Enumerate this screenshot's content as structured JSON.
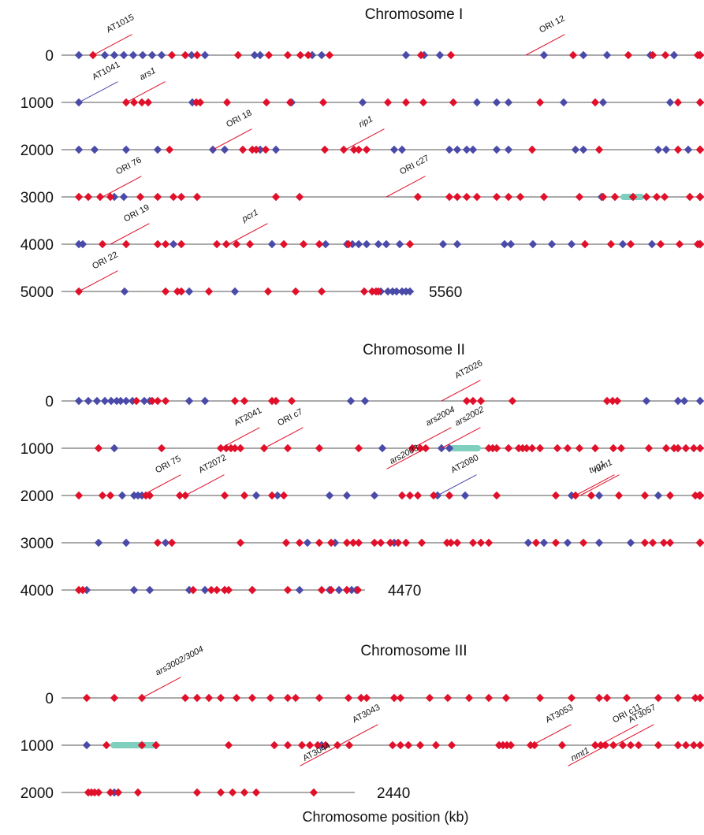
{
  "colors": {
    "red": "#e0102a",
    "blue": "#4a4aa8",
    "teal": "#7fcfbf",
    "line": "#555555"
  },
  "axis_label": "Chromosome position (kb)",
  "chromosomes": [
    {
      "title": "Chromosome I",
      "end_label": "5560",
      "rows": [
        {
          "label": "0",
          "red": [
            18,
            118,
            135,
            150,
            202,
            241,
            265,
            281,
            291,
            318,
            434,
            472,
            627,
            697,
            728,
            744,
            785,
            820,
            828,
            890
          ],
          "blue": [
            0,
            33,
            45,
            57,
            69,
            81,
            93,
            105,
            143,
            160,
            223,
            230,
            296,
            308,
            415,
            438,
            458,
            590,
            640,
            670,
            725,
            755,
            802,
            845,
            893
          ],
          "teal": []
        },
        {
          "label": "1000",
          "red": [
            60,
            70,
            80,
            88,
            149,
            154,
            188,
            238,
            268,
            310,
            392,
            415,
            437,
            475,
            585,
            655,
            760,
            870
          ],
          "blue": [
            0,
            144,
            270,
            360,
            505,
            530,
            545,
            615,
            665,
            750,
            820,
            880
          ],
          "teal": []
        },
        {
          "label": "2000",
          "red": [
            115,
            208,
            220,
            225,
            237,
            312,
            336,
            349,
            355,
            365,
            575,
            660,
            760,
            850,
            862,
            870,
            880
          ],
          "blue": [
            0,
            20,
            60,
            100,
            170,
            185,
            230,
            250,
            400,
            410,
            470,
            480,
            492,
            500,
            530,
            545,
            630,
            640,
            735,
            745,
            773
          ],
          "teal": []
        },
        {
          "label": "3000",
          "red": [
            0,
            12,
            27,
            40,
            78,
            100,
            120,
            130,
            150,
            250,
            280,
            430,
            470,
            480,
            492,
            505,
            530,
            545,
            560,
            590,
            635,
            665,
            680,
            703,
            720,
            733,
            743,
            775,
            800,
            820,
            850,
            868,
            880
          ],
          "blue": [
            45,
            57,
            663
          ],
          "teal": [
            [
              687,
              717
            ]
          ]
        },
        {
          "label": "4000",
          "red": [
            30,
            60,
            100,
            110,
            130,
            175,
            187,
            200,
            217,
            260,
            285,
            305,
            342,
            420,
            642,
            675,
            700,
            738,
            762,
            785,
            833,
            860,
            880
          ],
          "blue": [
            0,
            5,
            120,
            245,
            313,
            340,
            347,
            355,
            365,
            380,
            390,
            407,
            462,
            480,
            540,
            548,
            576,
            600,
            625,
            690,
            727,
            830,
            880
          ],
          "teal": []
        },
        {
          "label": "5000",
          "red": [
            0,
            110,
            125,
            130,
            165,
            240,
            275,
            308,
            362,
            372,
            377,
            380
          ],
          "blue": [
            58,
            140,
            198,
            383,
            392,
            398,
            403,
            410,
            415,
            420
          ],
          "teal": []
        }
      ]
    },
    {
      "title": "Chromosome II",
      "end_label": "4470",
      "rows": [
        {
          "label": "0",
          "red": [
            73,
            93,
            100,
            110,
            198,
            210,
            245,
            250,
            270,
            492,
            500,
            510,
            550,
            670,
            677,
            683
          ],
          "blue": [
            0,
            12,
            23,
            33,
            41,
            48,
            53,
            60,
            68,
            83,
            90,
            140,
            160,
            345,
            363,
            720,
            760,
            768,
            880
          ],
          "teal": []
        },
        {
          "label": "1000",
          "red": [
            25,
            105,
            180,
            187,
            193,
            198,
            205,
            235,
            265,
            305,
            355,
            423,
            433,
            440,
            520,
            525,
            530,
            545,
            558,
            563,
            568,
            575,
            585,
            607,
            620,
            635,
            655,
            678,
            688,
            723,
            745,
            755,
            760,
            770,
            780,
            880
          ],
          "blue": [
            45,
            385,
            460,
            470
          ],
          "teal": [
            [
              470,
              510
            ]
          ]
        },
        {
          "label": "2000",
          "red": [
            0,
            30,
            40,
            85,
            90,
            128,
            135,
            185,
            210,
            245,
            260,
            410,
            420,
            430,
            450,
            470,
            530,
            605,
            630,
            650,
            685,
            718,
            750,
            782,
            787,
            810,
            823,
            830,
            850,
            870,
            880
          ],
          "blue": [
            55,
            70,
            75,
            80,
            225,
            252,
            318,
            340,
            375,
            455,
            470,
            490,
            625,
            660,
            735,
            810,
            880
          ],
          "teal": []
        },
        {
          "label": "3000",
          "red": [
            100,
            118,
            205,
            263,
            280,
            305,
            320,
            340,
            348,
            355,
            375,
            383,
            395,
            405,
            415,
            435,
            467,
            472,
            480,
            500,
            510,
            520,
            580,
            605,
            640,
            718,
            728,
            742,
            750,
            790,
            810,
            850,
            860,
            880
          ],
          "blue": [
            25,
            60,
            110,
            290,
            325,
            400,
            570,
            590,
            620,
            660,
            700,
            877
          ],
          "teal": []
        },
        {
          "label": "4000",
          "red": [
            0,
            5,
            145,
            185,
            168,
            175,
            190,
            220,
            265,
            308,
            320,
            340,
            354
          ],
          "blue": [
            10,
            70,
            90,
            140,
            160,
            185,
            220,
            280,
            318,
            330,
            340,
            346,
            352
          ],
          "teal": []
        }
      ]
    },
    {
      "title": "Chromosome III",
      "end_label": "2440",
      "rows": [
        {
          "label": "0",
          "red": [
            10,
            45,
            80,
            135,
            150,
            165,
            180,
            200,
            220,
            243,
            265,
            275,
            305,
            342,
            358,
            365,
            400,
            408,
            445,
            468,
            495,
            520,
            542,
            585,
            625,
            660,
            670,
            695,
            735,
            760,
            782,
            800,
            875
          ],
          "blue": [],
          "teal": []
        },
        {
          "label": "1000",
          "red": [
            35,
            80,
            98,
            190,
            248,
            265,
            283,
            293,
            303,
            313,
            328,
            343,
            398,
            408,
            418,
            433,
            453,
            473,
            533,
            538,
            543,
            548,
            573,
            578,
            613,
            655,
            662,
            668,
            678,
            690,
            700,
            710,
            735,
            760,
            770,
            780,
            875
          ],
          "blue": [
            10,
            308
          ],
          "teal": [
            [
              40,
              100
            ]
          ]
        },
        {
          "label": "2000",
          "red": [
            12,
            16,
            20,
            25,
            40,
            50,
            75,
            150,
            180,
            195,
            210,
            225,
            298
          ],
          "blue": [
            45
          ],
          "teal": []
        }
      ]
    }
  ],
  "labels": [
    {
      "text": "AT1015",
      "color": "red",
      "italic": false,
      "chrom": 0,
      "row": 0,
      "at": 18,
      "dir": "up"
    },
    {
      "text": "ORI 12",
      "color": "red",
      "italic": false,
      "chrom": 0,
      "row": 0,
      "at": 567,
      "dir": "up"
    },
    {
      "text": "AT1041",
      "color": "blue",
      "italic": false,
      "chrom": 0,
      "row": 1,
      "at": 0,
      "dir": "up"
    },
    {
      "text": "ars1",
      "color": "red",
      "italic": true,
      "chrom": 0,
      "row": 1,
      "at": 60,
      "dir": "up"
    },
    {
      "text": "ORI 18",
      "color": "red",
      "italic": false,
      "chrom": 0,
      "row": 2,
      "at": 170,
      "dir": "up"
    },
    {
      "text": "rip1",
      "color": "red",
      "italic": true,
      "chrom": 0,
      "row": 2,
      "at": 338,
      "dir": "up"
    },
    {
      "text": "ORI 76",
      "color": "red",
      "italic": false,
      "chrom": 0,
      "row": 3,
      "at": 30,
      "dir": "up"
    },
    {
      "text": "ORI c27",
      "color": "red",
      "italic": false,
      "chrom": 0,
      "row": 3,
      "at": 390,
      "dir": "up"
    },
    {
      "text": "ORI 19",
      "color": "red",
      "italic": false,
      "chrom": 0,
      "row": 4,
      "at": 40,
      "dir": "up"
    },
    {
      "text": "pcr1",
      "color": "red",
      "italic": true,
      "chrom": 0,
      "row": 4,
      "at": 190,
      "dir": "up"
    },
    {
      "text": "ORI 22",
      "color": "red",
      "italic": false,
      "chrom": 0,
      "row": 5,
      "at": 0,
      "dir": "up"
    },
    {
      "text": "AT2026",
      "color": "red",
      "italic": false,
      "chrom": 1,
      "row": 0,
      "at": 460,
      "dir": "up"
    },
    {
      "text": "AT2041",
      "color": "red",
      "italic": false,
      "chrom": 1,
      "row": 1,
      "at": 180,
      "dir": "up"
    },
    {
      "text": "ORI c7",
      "color": "red",
      "italic": false,
      "chrom": 1,
      "row": 1,
      "at": 235,
      "dir": "up"
    },
    {
      "text": "ars2004",
      "color": "red",
      "italic": true,
      "chrom": 1,
      "row": 1,
      "at": 423,
      "dir": "up"
    },
    {
      "text": "ars2002",
      "color": "red",
      "italic": true,
      "chrom": 1,
      "row": 1,
      "at": 460,
      "dir": "up"
    },
    {
      "text": "ars2003",
      "color": "red",
      "italic": true,
      "chrom": 1,
      "row": 1,
      "at": 440,
      "dir": "down"
    },
    {
      "text": "ORI 75",
      "color": "red",
      "italic": false,
      "chrom": 1,
      "row": 2,
      "at": 80,
      "dir": "up"
    },
    {
      "text": "AT2072",
      "color": "red",
      "italic": false,
      "chrom": 1,
      "row": 2,
      "at": 135,
      "dir": "up"
    },
    {
      "text": "AT2080",
      "color": "blue",
      "italic": false,
      "chrom": 1,
      "row": 2,
      "at": 455,
      "dir": "up"
    },
    {
      "text": "tug1",
      "color": "red",
      "italic": true,
      "chrom": 1,
      "row": 2,
      "at": 630,
      "dir": "up"
    },
    {
      "text": "rum1",
      "color": "red",
      "italic": true,
      "chrom": 1,
      "row": 2,
      "at": 636,
      "dir": "up"
    },
    {
      "text": "ars3002/3004",
      "color": "red",
      "italic": true,
      "chrom": 2,
      "row": 0,
      "at": 80,
      "dir": "up"
    },
    {
      "text": "AT3043",
      "color": "red",
      "italic": false,
      "chrom": 2,
      "row": 1,
      "at": 330,
      "dir": "up"
    },
    {
      "text": "AT3044",
      "color": "red",
      "italic": false,
      "chrom": 2,
      "row": 1,
      "at": 330,
      "dir": "down"
    },
    {
      "text": "AT3053",
      "color": "red",
      "italic": false,
      "chrom": 2,
      "row": 1,
      "at": 575,
      "dir": "up"
    },
    {
      "text": "ORI c11",
      "color": "red",
      "italic": false,
      "chrom": 2,
      "row": 1,
      "at": 660,
      "dir": "up"
    },
    {
      "text": "AT3057",
      "color": "red",
      "italic": false,
      "chrom": 2,
      "row": 1,
      "at": 680,
      "dir": "up"
    },
    {
      "text": "nmt1",
      "color": "red",
      "italic": true,
      "chrom": 2,
      "row": 1,
      "at": 670,
      "dir": "down"
    }
  ]
}
